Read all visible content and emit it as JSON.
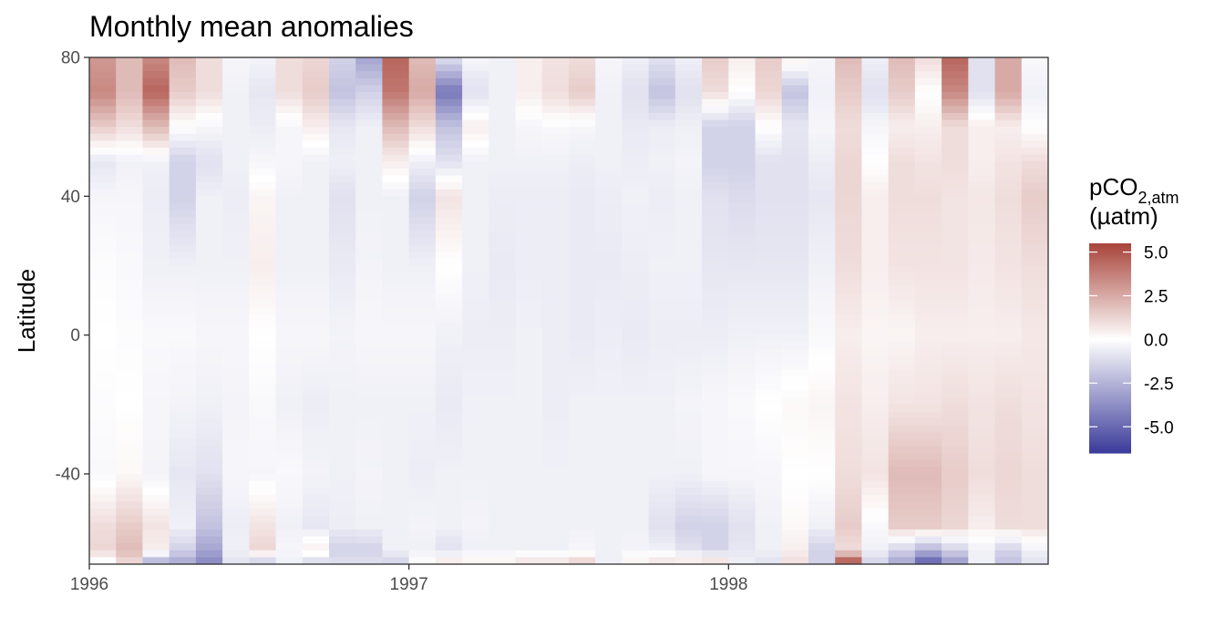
{
  "chart_data": {
    "type": "heatmap",
    "title": "Monthly mean anomalies",
    "xlabel": "",
    "ylabel": "Latitude",
    "x_ticks": [
      "1996",
      "1997",
      "1998"
    ],
    "y_ticks": [
      80,
      40,
      0,
      -40
    ],
    "xlim": [
      "1996-01",
      "1998-12"
    ],
    "ylim": [
      -66,
      80
    ],
    "grid": false,
    "legend": {
      "title_main": "pCO",
      "title_sub": "2,atm",
      "title_unit": "(µatm)",
      "position": "right",
      "range": [
        -6.5,
        5.5
      ],
      "ticks": [
        "5.0",
        "2.5",
        "0.0",
        "-2.5",
        "-5.0"
      ],
      "colors": {
        "low": "#3b3b9a",
        "mid": "#ffffff",
        "high": "#a8443a"
      }
    },
    "months": [
      "1996-01",
      "1996-02",
      "1996-03",
      "1996-04",
      "1996-05",
      "1996-06",
      "1996-07",
      "1996-08",
      "1996-09",
      "1996-10",
      "1996-11",
      "1996-12",
      "1997-01",
      "1997-02",
      "1997-03",
      "1997-04",
      "1997-05",
      "1997-06",
      "1997-07",
      "1997-08",
      "1997-09",
      "1997-10",
      "1997-11",
      "1997-12",
      "1998-01",
      "1998-02",
      "1998-03",
      "1998-04",
      "1998-05",
      "1998-06",
      "1998-07",
      "1998-08",
      "1998-09",
      "1998-10",
      "1998-11",
      "1998-12"
    ],
    "latitude_profiles": {
      "latitudes": [
        80,
        70,
        60,
        50,
        40,
        20,
        0,
        -20,
        -40,
        -55,
        -62,
        -66
      ],
      "values": [
        [
          3.0,
          3.5,
          1.5,
          -0.8,
          -0.3,
          -0.1,
          0.0,
          -0.1,
          -0.2,
          1.0,
          1.2,
          -0.5
        ],
        [
          2.0,
          2.0,
          1.0,
          -0.5,
          -0.3,
          -0.2,
          -0.1,
          0.0,
          0.2,
          1.5,
          2.0,
          1.0
        ],
        [
          3.5,
          4.5,
          2.0,
          -0.5,
          -0.6,
          -0.5,
          -0.2,
          -0.3,
          -0.4,
          0.8,
          0.5,
          -3.0
        ],
        [
          2.0,
          1.5,
          0.0,
          -1.5,
          -1.5,
          -0.5,
          -0.2,
          -0.4,
          -0.8,
          -0.5,
          -1.5,
          -3.0
        ],
        [
          1.0,
          1.0,
          -0.3,
          -1.0,
          -0.5,
          -0.5,
          -0.3,
          -0.5,
          -1.0,
          -2.0,
          -3.0,
          -4.0
        ],
        [
          -0.3,
          -0.5,
          -0.5,
          -0.5,
          -0.6,
          -0.5,
          -0.3,
          -0.4,
          -0.3,
          -0.6,
          -0.5,
          -1.0
        ],
        [
          -0.4,
          -0.8,
          -0.6,
          -0.3,
          0.3,
          0.5,
          0.0,
          -0.2,
          -0.3,
          0.8,
          1.2,
          -2.0
        ],
        [
          1.0,
          1.0,
          -0.3,
          -0.3,
          -0.5,
          -0.5,
          -0.3,
          -0.5,
          -0.2,
          -0.5,
          -0.3,
          -0.5
        ],
        [
          1.2,
          1.5,
          0.5,
          -0.5,
          -0.5,
          -0.5,
          -0.3,
          -0.6,
          -0.4,
          -0.8,
          0.5,
          -1.5
        ],
        [
          -1.5,
          -2.0,
          -0.8,
          -0.5,
          -1.0,
          -0.7,
          -0.4,
          -0.5,
          -0.5,
          -0.6,
          -1.5,
          -1.0
        ],
        [
          -3.0,
          -1.5,
          -0.5,
          -0.5,
          -0.5,
          -0.4,
          -0.3,
          -0.5,
          -0.4,
          -0.5,
          -1.5,
          -1.0
        ],
        [
          4.5,
          4.0,
          2.0,
          0.5,
          -0.5,
          -0.5,
          -0.3,
          -0.5,
          -0.5,
          -0.5,
          -0.5,
          -1.5
        ],
        [
          2.0,
          2.5,
          1.0,
          -0.5,
          -1.5,
          -0.5,
          -0.3,
          -0.5,
          -0.6,
          -0.4,
          -0.5,
          0.0
        ],
        [
          -1.0,
          -4.5,
          -2.0,
          -1.0,
          0.8,
          0.0,
          -0.5,
          -0.7,
          -0.5,
          -0.5,
          -1.0,
          1.0
        ],
        [
          -0.3,
          -1.0,
          0.5,
          -0.5,
          -0.5,
          -0.5,
          -0.6,
          -0.5,
          -0.5,
          -0.4,
          -0.5,
          0.5
        ],
        [
          -0.5,
          -0.5,
          -0.5,
          -0.5,
          -0.6,
          -0.7,
          -0.6,
          -0.5,
          -0.5,
          -0.5,
          -0.5,
          0.5
        ],
        [
          0.5,
          0.5,
          -0.3,
          -0.5,
          -0.6,
          -0.6,
          -0.5,
          -0.5,
          -0.5,
          -0.5,
          -0.5,
          1.0
        ],
        [
          0.8,
          1.0,
          -0.2,
          -0.5,
          -0.6,
          -0.6,
          -0.6,
          -0.6,
          -0.5,
          -0.5,
          -0.5,
          1.0
        ],
        [
          1.0,
          1.5,
          -0.3,
          -0.6,
          -0.7,
          -0.7,
          -0.7,
          -0.5,
          -0.5,
          -0.5,
          -0.3,
          1.5
        ],
        [
          -0.3,
          -0.5,
          -0.5,
          -0.5,
          -0.6,
          -0.7,
          -0.6,
          -0.5,
          -0.5,
          -0.5,
          -0.5,
          -0.5
        ],
        [
          -0.5,
          -1.0,
          -0.7,
          -0.6,
          -0.5,
          -0.6,
          -0.7,
          -0.5,
          -0.5,
          -0.5,
          -0.4,
          0.5
        ],
        [
          -1.0,
          -2.0,
          -0.6,
          -0.5,
          -0.6,
          -0.5,
          -0.6,
          -0.5,
          -0.5,
          -1.0,
          -0.5,
          1.0
        ],
        [
          -0.5,
          -1.0,
          -0.5,
          -0.4,
          -0.5,
          -0.5,
          -0.6,
          -0.4,
          -0.5,
          -1.5,
          -1.0,
          1.0
        ],
        [
          1.5,
          1.0,
          -1.5,
          -1.5,
          -1.0,
          -0.8,
          -0.6,
          -0.3,
          -0.3,
          -1.5,
          -1.5,
          1.5
        ],
        [
          0.5,
          0.0,
          -1.5,
          -1.5,
          -1.2,
          -0.8,
          -0.5,
          -0.2,
          -0.3,
          -1.0,
          -0.8,
          -0.5
        ],
        [
          1.5,
          1.2,
          0.0,
          -1.0,
          -1.0,
          -0.8,
          -0.5,
          0.0,
          -0.3,
          -0.5,
          -0.5,
          -1.0
        ],
        [
          0.5,
          -2.0,
          -0.8,
          -1.0,
          -1.0,
          -0.8,
          -0.5,
          0.2,
          0.0,
          0.2,
          0.5,
          1.0
        ],
        [
          -0.3,
          -0.5,
          -0.3,
          -0.6,
          -0.8,
          -0.5,
          -0.2,
          0.3,
          0.0,
          -0.5,
          -1.5,
          -1.5
        ],
        [
          2.0,
          1.5,
          1.0,
          1.2,
          1.2,
          1.0,
          0.5,
          0.8,
          1.0,
          1.5,
          1.0,
          5.5
        ],
        [
          -0.5,
          -1.0,
          -0.3,
          0.0,
          0.5,
          0.5,
          0.3,
          0.5,
          0.8,
          -0.2,
          -0.5,
          -1.5
        ],
        [
          2.0,
          1.5,
          0.5,
          1.0,
          1.0,
          0.8,
          0.3,
          0.8,
          2.0,
          1.5,
          -1.5,
          -3.0
        ],
        [
          1.0,
          0.0,
          0.5,
          0.8,
          1.0,
          0.8,
          0.5,
          0.8,
          2.0,
          1.5,
          -2.5,
          -5.5
        ],
        [
          4.5,
          3.5,
          1.0,
          1.0,
          0.8,
          0.8,
          0.5,
          1.0,
          1.5,
          1.2,
          -1.5,
          -3.5
        ],
        [
          -1.0,
          -1.0,
          0.5,
          0.5,
          0.7,
          0.6,
          0.5,
          0.8,
          1.0,
          0.5,
          -0.5,
          -0.5
        ],
        [
          2.5,
          2.5,
          0.5,
          0.8,
          1.0,
          0.8,
          0.5,
          1.0,
          1.2,
          1.0,
          -1.5,
          -2.0
        ],
        [
          -0.2,
          -0.5,
          0.0,
          1.0,
          1.5,
          1.0,
          0.7,
          0.8,
          1.0,
          1.0,
          -0.5,
          -1.0
        ]
      ]
    }
  }
}
